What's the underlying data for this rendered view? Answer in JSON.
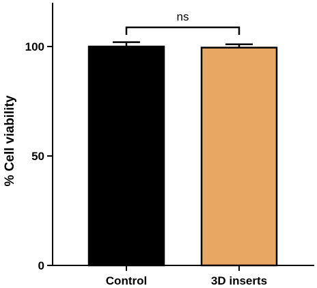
{
  "chart_data": {
    "type": "bar",
    "categories": [
      "Control",
      "3D inserts"
    ],
    "values": [
      100,
      99.5
    ],
    "error": [
      2,
      1.5
    ],
    "colors": [
      "#000000",
      "#E8A863"
    ],
    "edgecolor": "#000000",
    "title": "",
    "xlabel": "",
    "ylabel": "% Cell viability",
    "ylim": [
      0,
      120
    ],
    "yticks": [
      0,
      50,
      100
    ],
    "grid": false,
    "legend": "none",
    "annotation": {
      "text": "ns",
      "between": [
        "Control",
        "3D inserts"
      ]
    }
  }
}
